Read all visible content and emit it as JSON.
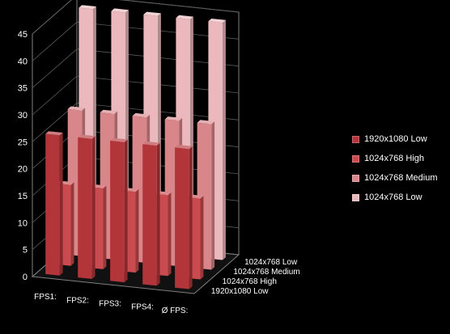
{
  "chart_data": {
    "type": "bar",
    "subtype": "3d-column",
    "categories": [
      "FPS1:",
      "FPS2:",
      "FPS3:",
      "FPS4:",
      "Ø FPS:"
    ],
    "series": [
      {
        "name": "1920x1080 Low",
        "values": [
          26,
          26,
          26,
          26,
          26
        ],
        "color": "#b2353a"
      },
      {
        "name": "1024x768 High",
        "values": [
          15,
          15,
          15,
          15,
          15
        ],
        "color": "#c94b4f"
      },
      {
        "name": "1024x768 Medium",
        "values": [
          27,
          27,
          27,
          27,
          27
        ],
        "color": "#d9868b"
      },
      {
        "name": "1024x768 Low",
        "values": [
          44,
          44,
          44,
          44,
          44
        ],
        "color": "#ebb9bd"
      }
    ],
    "y_ticks": [
      "0",
      "5",
      "10",
      "15",
      "20",
      "25",
      "30",
      "35",
      "40",
      "45"
    ],
    "ylim": [
      0,
      45
    ],
    "grid": true,
    "legend_position": "right",
    "background": "#000000",
    "axis_color": "#7f7f7f"
  }
}
